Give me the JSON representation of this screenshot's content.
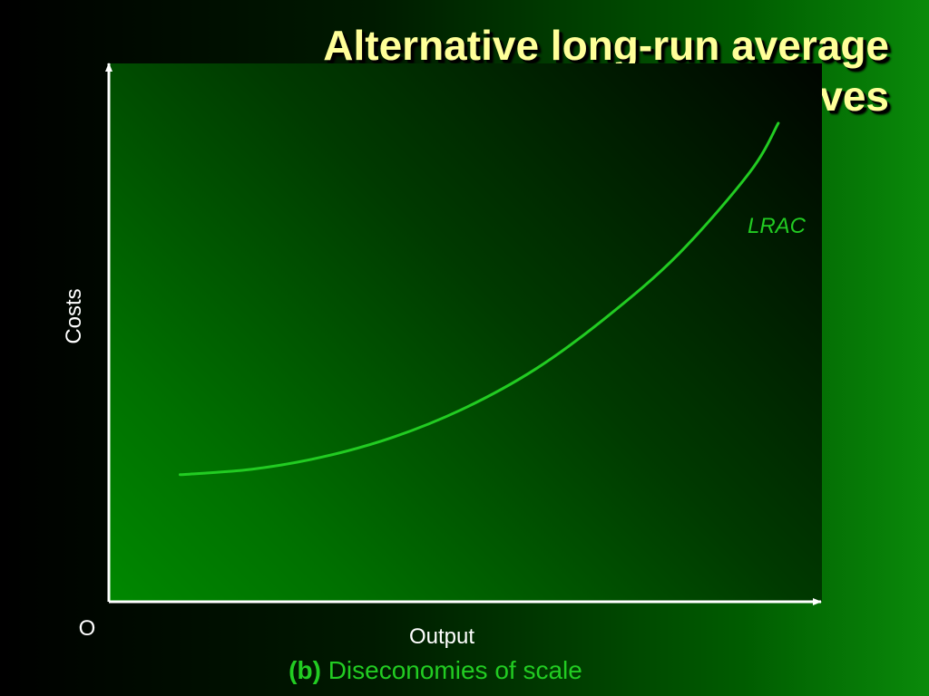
{
  "title_line1": "Alternative long-run average",
  "title_line2": "cost curves",
  "caption": {
    "label": "(b)",
    "text": "Diseconomies of scale"
  },
  "colors": {
    "curve": "#22cc22",
    "axis": "#ffffff",
    "title": "#ffff99"
  },
  "chart_data": {
    "type": "line",
    "xlabel": "Output",
    "ylabel": "Costs",
    "origin_label": "O",
    "xlim": [
      0,
      100
    ],
    "ylim": [
      0,
      100
    ],
    "grid": false,
    "series": [
      {
        "name": "LRAC",
        "x": [
          10,
          20,
          30,
          40,
          50,
          60,
          70,
          80,
          90,
          94
        ],
        "y": [
          23.6,
          24.6,
          26.9,
          30.6,
          36.0,
          43.3,
          53.0,
          64.6,
          79.8,
          88.9
        ]
      }
    ]
  }
}
